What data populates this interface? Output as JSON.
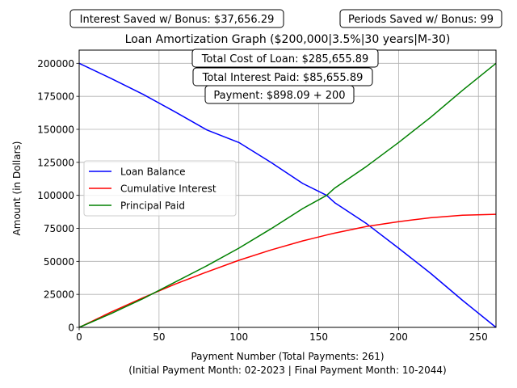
{
  "chart_data": {
    "type": "line",
    "title": "Loan Amortization Graph ($200,000|3.5%|30 years|M-30)",
    "xlabel": "Payment Number (Total Payments: 261)",
    "xlabel2": "(Initial Payment Month: 02-2023 | Final Payment Month: 10-2044)",
    "ylabel": "Amount (in Dollars)",
    "xlim": [
      0,
      261
    ],
    "ylim": [
      0,
      210000
    ],
    "xticks": [
      0,
      50,
      100,
      150,
      200,
      250
    ],
    "yticks": [
      0,
      25000,
      50000,
      75000,
      100000,
      125000,
      150000,
      175000,
      200000
    ],
    "grid": true,
    "legend_position": "center-left",
    "annotations": {
      "interest_saved": "Interest Saved w/ Bonus: $37,656.29",
      "periods_saved": "Periods Saved w/ Bonus: 99",
      "total_cost": "Total Cost of Loan: $285,655.89",
      "total_interest": "Total Interest Paid: $85,655.89",
      "payment": "Payment: $898.09 + 200"
    },
    "x": [
      0,
      20,
      40,
      60,
      80,
      100,
      120,
      140,
      155,
      160,
      180,
      200,
      220,
      240,
      261
    ],
    "series": [
      {
        "name": "Loan Balance",
        "color": "#0000ff",
        "values": [
          200000,
          188500,
          176500,
          163300,
          149500,
          140000,
          125000,
          109000,
          100000,
          94500,
          78500,
          60000,
          41000,
          20500,
          0
        ]
      },
      {
        "name": "Cumulative Interest",
        "color": "#ff0000",
        "values": [
          0,
          11600,
          22500,
          32700,
          42000,
          50800,
          58600,
          65500,
          70000,
          71400,
          76500,
          80100,
          83000,
          84900,
          85656
        ]
      },
      {
        "name": "Principal Paid",
        "color": "#008000",
        "values": [
          0,
          10500,
          21800,
          34200,
          46700,
          60000,
          74600,
          90000,
          100000,
          105500,
          122000,
          140000,
          159000,
          179500,
          200000
        ]
      }
    ]
  }
}
